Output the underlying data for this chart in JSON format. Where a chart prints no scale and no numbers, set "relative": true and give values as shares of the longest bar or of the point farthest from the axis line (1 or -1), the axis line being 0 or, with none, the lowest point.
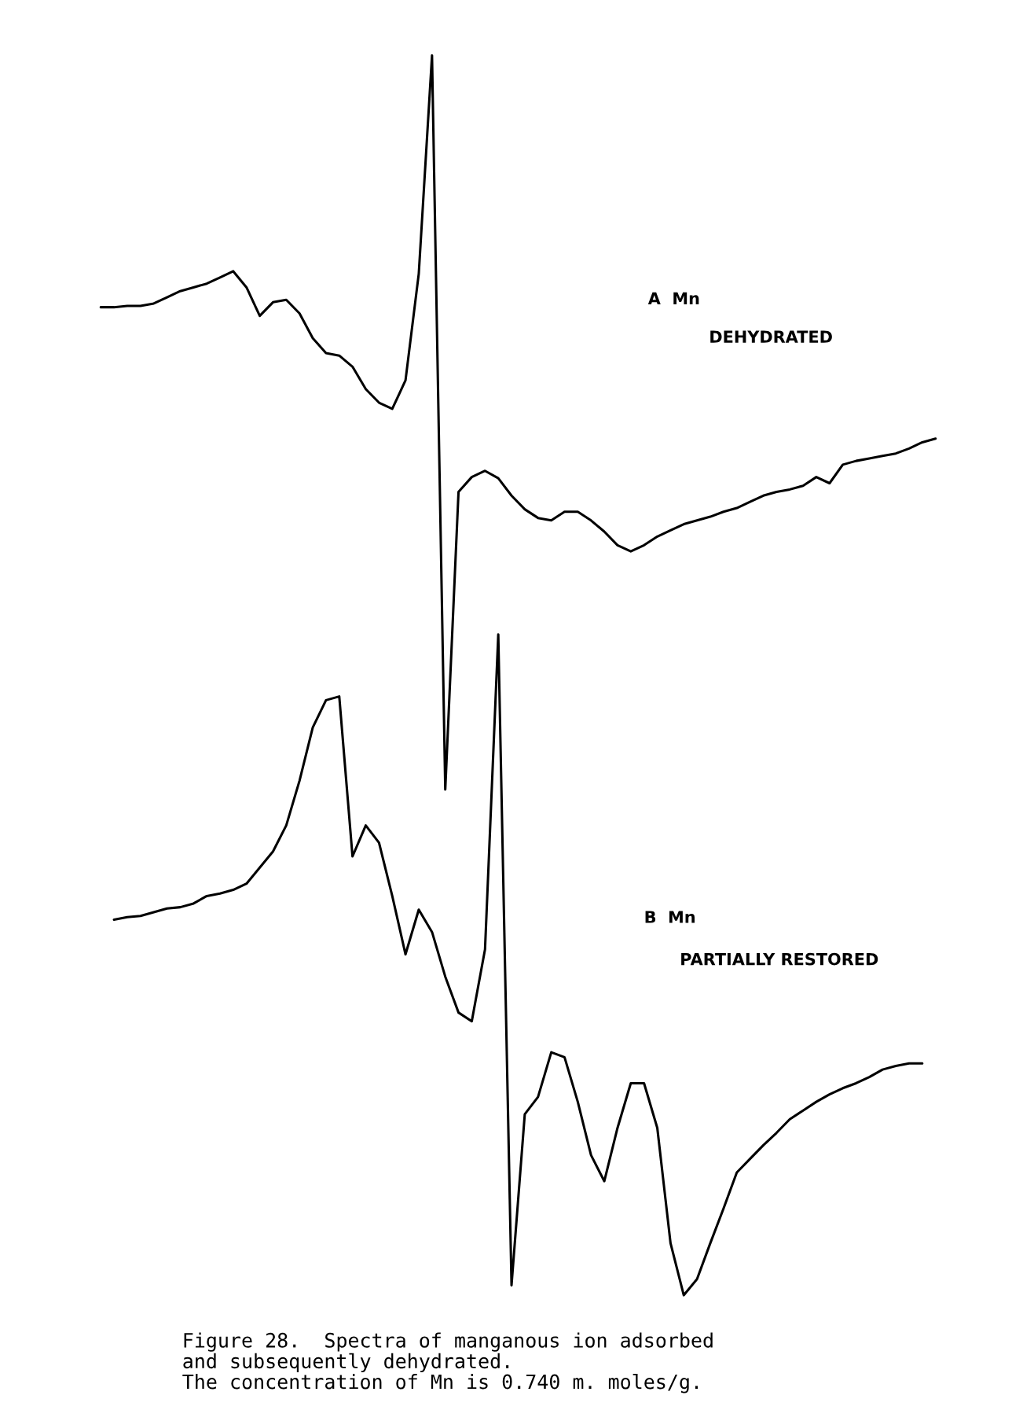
{
  "chart_data": {
    "type": "line",
    "relative": true,
    "categories": [
      null,
      null,
      null,
      null,
      null,
      null,
      null,
      null,
      null,
      null,
      null,
      null,
      null,
      null,
      null,
      null,
      null,
      null,
      null,
      null,
      null,
      null,
      null,
      null,
      null,
      null,
      null,
      null,
      null,
      null,
      null,
      null,
      null,
      null,
      null,
      null,
      null,
      null,
      null,
      null,
      null,
      null,
      null,
      null,
      null,
      null,
      null,
      null,
      null,
      null,
      null,
      null,
      null,
      null,
      null,
      null,
      null,
      null,
      null,
      null,
      null,
      null,
      null,
      null
    ],
    "series": [
      {
        "color": "#000000",
        "values": [
          0.797,
          0.797,
          0.798,
          0.798,
          0.8,
          0.805,
          0.81,
          0.813,
          0.816,
          0.821,
          0.826,
          0.813,
          0.79,
          0.801,
          0.803,
          0.792,
          0.772,
          0.76,
          0.758,
          0.749,
          0.731,
          0.72,
          0.715,
          0.738,
          0.824,
          1,
          0.408,
          0.648,
          0.66,
          0.665,
          0.659,
          0.645,
          0.634,
          0.627,
          0.625,
          0.632,
          0.632,
          0.625,
          0.616,
          0.605,
          0.6,
          0.605,
          0.612,
          0.617,
          0.622,
          0.625,
          0.628,
          0.632,
          0.635,
          0.64,
          0.645,
          0.648,
          0.65,
          0.653,
          0.66,
          0.655,
          0.67,
          0.673,
          0.675,
          0.677,
          0.679,
          0.683,
          0.688,
          0.691
        ]
      },
      {
        "color": "#000000",
        "values": [
          null,
          0.303,
          0.305,
          0.306,
          0.309,
          0.312,
          0.313,
          0.316,
          0.322,
          0.324,
          0.327,
          0.332,
          0.345,
          0.358,
          0.379,
          0.415,
          0.458,
          0.48,
          0.483,
          0.354,
          0.379,
          0.365,
          0.322,
          0.275,
          0.311,
          0.293,
          0.257,
          0.228,
          0.221,
          0.279,
          0.533,
          0.008,
          0.146,
          0.16,
          0.196,
          0.192,
          0.156,
          0.113,
          0.092,
          0.135,
          0.171,
          0.171,
          0.135,
          0.042,
          0,
          0.013,
          0.042,
          0.07,
          0.099,
          0.11,
          0.121,
          0.131,
          0.142,
          0.149,
          0.156,
          0.162,
          0.167,
          0.171,
          0.176,
          0.182,
          0.185,
          0.187,
          0.187,
          null
        ]
      }
    ],
    "annotations": [
      "A  Mn",
      "DEHYDRATED",
      "B  Mn",
      "PARTIALLY RESTORED",
      "Figure 28.  Spectra of manganous ion adsorbed\nand subsequently dehydrated.\nThe concentration of Mn is 0.740 m. moles/g."
    ],
    "legend": false
  }
}
